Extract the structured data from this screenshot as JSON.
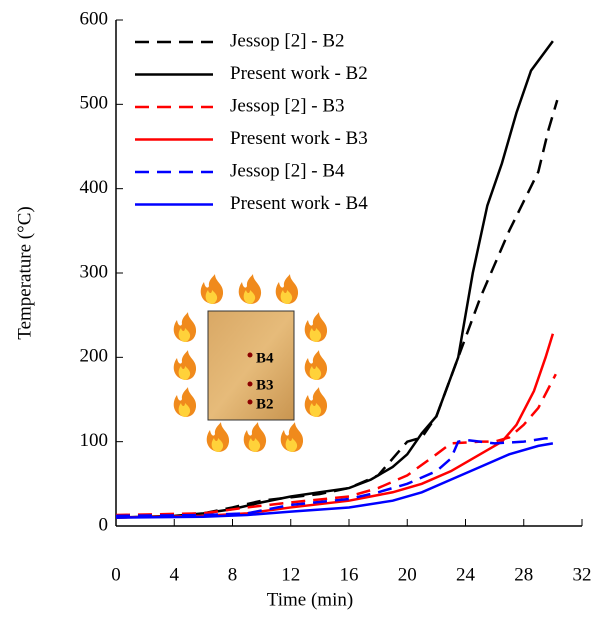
{
  "chart_data": {
    "type": "line",
    "y_label": "Temperature (°C)",
    "x_label": "Time (min)",
    "xlim": [
      0,
      32
    ],
    "ylim": [
      0,
      600
    ],
    "xticks": [
      0,
      4,
      8,
      12,
      16,
      20,
      24,
      28,
      32
    ],
    "yticks": [
      0,
      100,
      200,
      300,
      400,
      500,
      600
    ],
    "legend": "upper left",
    "annotations": [
      "B4",
      "B3",
      "B2"
    ],
    "series": [
      {
        "name": "Jessop [2] - B2",
        "color": "#000000",
        "dash": true,
        "x": [
          0,
          6,
          8,
          10,
          14,
          16,
          18,
          19,
          20,
          21,
          22,
          23.5,
          25,
          26,
          27,
          28,
          29,
          29.7,
          30.3
        ],
        "values": [
          12,
          15,
          22,
          30,
          38,
          45,
          60,
          80,
          100,
          105,
          130,
          200,
          270,
          310,
          350,
          385,
          420,
          470,
          505
        ]
      },
      {
        "name": "Present work - B2",
        "color": "#000000",
        "dash": false,
        "x": [
          0,
          4,
          6,
          8,
          10,
          12,
          14,
          16,
          17.5,
          19,
          20,
          21,
          22,
          23.5,
          24.5,
          25.5,
          26.5,
          27.5,
          28.5,
          30
        ],
        "values": [
          10,
          12,
          15,
          20,
          28,
          35,
          40,
          45,
          55,
          70,
          85,
          110,
          130,
          200,
          300,
          380,
          430,
          490,
          540,
          575
        ]
      },
      {
        "name": "Jessop [2] - B3",
        "color": "#ff0000",
        "dash": true,
        "x": [
          0,
          6,
          9,
          12,
          16,
          18,
          20,
          22,
          23,
          25,
          26,
          27,
          28,
          29,
          30.2
        ],
        "values": [
          13,
          15,
          22,
          28,
          35,
          45,
          60,
          85,
          98,
          100,
          100,
          105,
          120,
          140,
          180
        ]
      },
      {
        "name": "Present work - B3",
        "color": "#ff0000",
        "dash": false,
        "x": [
          0,
          6,
          9,
          12,
          16,
          19,
          21,
          23,
          25,
          26.5,
          27.5,
          28.7,
          29.5,
          30
        ],
        "values": [
          10,
          12,
          15,
          22,
          30,
          40,
          50,
          65,
          85,
          100,
          120,
          160,
          200,
          228
        ]
      },
      {
        "name": "Jessop [2] - B4",
        "color": "#0000ff",
        "dash": true,
        "x": [
          0,
          6,
          9,
          12,
          16,
          18,
          20,
          22,
          23,
          23.5,
          24,
          26,
          28,
          29.5,
          30
        ],
        "values": [
          12,
          13,
          15,
          25,
          32,
          40,
          50,
          65,
          80,
          100,
          102,
          98,
          100,
          104,
          103
        ]
      },
      {
        "name": "Present work - B4",
        "color": "#0000ff",
        "dash": false,
        "x": [
          0,
          6,
          9,
          12,
          16,
          19,
          21,
          23,
          25,
          27,
          29,
          30
        ],
        "values": [
          10,
          11,
          13,
          17,
          22,
          30,
          40,
          55,
          70,
          85,
          95,
          98
        ]
      }
    ]
  }
}
